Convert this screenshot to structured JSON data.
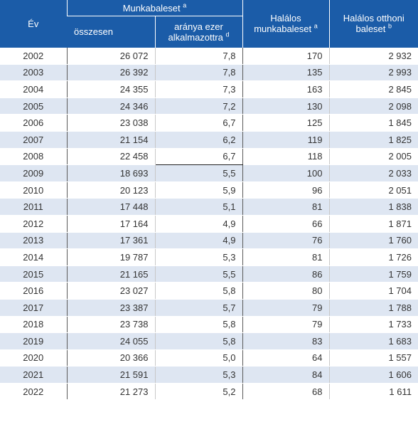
{
  "header": {
    "year_label": "Év",
    "group_label": "Munkabaleset",
    "group_sup": "a",
    "total_label": "összesen",
    "rate_label_1": "aránya ezer",
    "rate_label_2": "alkalmazottra",
    "rate_sup": "d",
    "fatal_work_label_1": "Halálos",
    "fatal_work_label_2": "munkabaleset",
    "fatal_work_sup": "a",
    "fatal_home_label_1": "Halálos otthoni",
    "fatal_home_label_2": "baleset",
    "fatal_home_sup": "b"
  },
  "colors": {
    "header_bg": "#1b5ca8",
    "stripe_bg": "#dee6f2"
  },
  "rows": [
    {
      "year": "2002",
      "total": "26 072",
      "rate": "7,8",
      "fatal_work": "170",
      "fatal_home": "2 932"
    },
    {
      "year": "2003",
      "total": "26 392",
      "rate": "7,8",
      "fatal_work": "135",
      "fatal_home": "2 993"
    },
    {
      "year": "2004",
      "total": "24 355",
      "rate": "7,3",
      "fatal_work": "163",
      "fatal_home": "2 845"
    },
    {
      "year": "2005",
      "total": "24 346",
      "rate": "7,2",
      "fatal_work": "130",
      "fatal_home": "2 098"
    },
    {
      "year": "2006",
      "total": "23 038",
      "rate": "6,7",
      "fatal_work": "125",
      "fatal_home": "1 845"
    },
    {
      "year": "2007",
      "total": "21 154",
      "rate": "6,2",
      "fatal_work": "119",
      "fatal_home": "1 825"
    },
    {
      "year": "2008",
      "total": "22 458",
      "rate": "6,7",
      "fatal_work": "118",
      "fatal_home": "2 005"
    },
    {
      "year": "2009",
      "total": "18 693",
      "rate": "5,5",
      "fatal_work": "100",
      "fatal_home": "2 033"
    },
    {
      "year": "2010",
      "total": "20 123",
      "rate": "5,9",
      "fatal_work": "96",
      "fatal_home": "2 051"
    },
    {
      "year": "2011",
      "total": "17 448",
      "rate": "5,1",
      "fatal_work": "81",
      "fatal_home": "1 838"
    },
    {
      "year": "2012",
      "total": "17 164",
      "rate": "4,9",
      "fatal_work": "66",
      "fatal_home": "1 871"
    },
    {
      "year": "2013",
      "total": "17 361",
      "rate": "4,9",
      "fatal_work": "76",
      "fatal_home": "1 760"
    },
    {
      "year": "2014",
      "total": "19 787",
      "rate": "5,3",
      "fatal_work": "81",
      "fatal_home": "1 726"
    },
    {
      "year": "2015",
      "total": "21 165",
      "rate": "5,5",
      "fatal_work": "86",
      "fatal_home": "1 759"
    },
    {
      "year": "2016",
      "total": "23 027",
      "rate": "5,8",
      "fatal_work": "80",
      "fatal_home": "1 704"
    },
    {
      "year": "2017",
      "total": "23 387",
      "rate": "5,7",
      "fatal_work": "79",
      "fatal_home": "1 788"
    },
    {
      "year": "2018",
      "total": "23 738",
      "rate": "5,8",
      "fatal_work": "79",
      "fatal_home": "1 733"
    },
    {
      "year": "2019",
      "total": "24 055",
      "rate": "5,8",
      "fatal_work": "83",
      "fatal_home": "1 683"
    },
    {
      "year": "2020",
      "total": "20 366",
      "rate": "5,0",
      "fatal_work": "64",
      "fatal_home": "1 557"
    },
    {
      "year": "2021",
      "total": "21 591",
      "rate": "5,3",
      "fatal_work": "84",
      "fatal_home": "1 606"
    },
    {
      "year": "2022",
      "total": "21 273",
      "rate": "5,2",
      "fatal_work": "68",
      "fatal_home": "1 611"
    }
  ]
}
